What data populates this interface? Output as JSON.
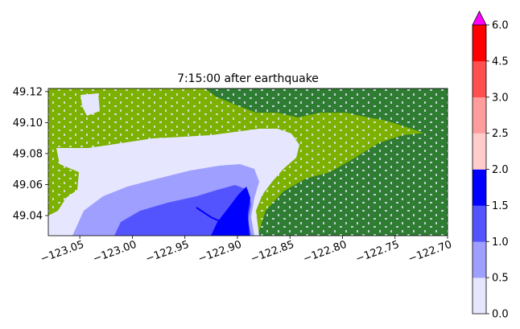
{
  "chart_data": {
    "type": "heatmap",
    "title": "7:15:00 after earthquake",
    "xlabel": "",
    "ylabel": "",
    "xlim": [
      -123.08,
      -122.7
    ],
    "ylim": [
      49.027,
      49.122
    ],
    "x_ticks": [
      -123.05,
      -123.0,
      -122.95,
      -122.9,
      -122.85,
      -122.8,
      -122.75,
      -122.7
    ],
    "x_tick_labels": [
      "−123.05",
      "−123.00",
      "−122.95",
      "−122.90",
      "−122.85",
      "−122.80",
      "−122.75",
      "−122.70"
    ],
    "y_ticks": [
      49.04,
      49.06,
      49.08,
      49.1,
      49.12
    ],
    "y_tick_labels": [
      "49.04",
      "49.06",
      "49.08",
      "49.10",
      "49.12"
    ],
    "colorbar": {
      "levels": [
        0.0,
        0.5,
        1.0,
        1.5,
        2.0,
        2.5,
        3.0,
        4.5,
        6.0
      ],
      "tick_labels": [
        "0.0",
        "0.5",
        "1.0",
        "1.5",
        "2.0",
        "2.5",
        "3.0",
        "4.5",
        "6.0"
      ],
      "colors": [
        "#e6e6ff",
        "#9f9fff",
        "#5454ff",
        "#0000ff",
        "#ffcccc",
        "#ff9d9d",
        "#ff4f4f",
        "#ff0000"
      ],
      "extend_max_color": "#ff00ff"
    },
    "land_colors": {
      "low_land": "#7cb100",
      "high_land": "#2f7d32"
    },
    "grid": false
  }
}
